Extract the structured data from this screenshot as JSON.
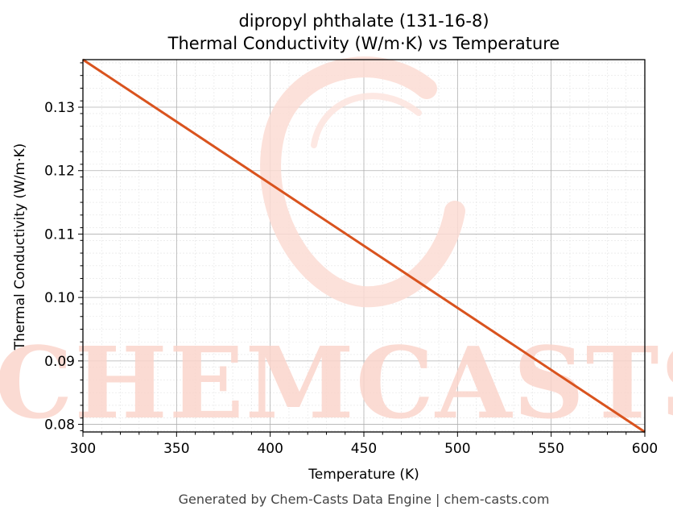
{
  "chart_data": {
    "type": "line",
    "title_line1": "dipropyl phthalate (131-16-8)",
    "title_line2": "Thermal Conductivity (W/m·K) vs Temperature",
    "xlabel": "Temperature (K)",
    "ylabel": "Thermal Conductivity (W/m·K)",
    "xlim": [
      300,
      600
    ],
    "ylim": [
      0.0788,
      0.1375
    ],
    "x_ticks": [
      300,
      350,
      400,
      450,
      500,
      550,
      600
    ],
    "y_ticks": [
      0.08,
      0.09,
      0.1,
      0.11,
      0.12,
      0.13
    ],
    "y_tick_labels": [
      "0.08",
      "0.09",
      "0.10",
      "0.11",
      "0.12",
      "0.13"
    ],
    "grid": true,
    "series": [
      {
        "color": "#d9531e",
        "x": [
          300,
          600
        ],
        "y": [
          0.1375,
          0.0788
        ]
      }
    ]
  },
  "watermark": {
    "text": "CHEMCASTS",
    "color": "#fbd5cc"
  },
  "footer": "Generated by Chem-Casts Data Engine | chem-casts.com"
}
